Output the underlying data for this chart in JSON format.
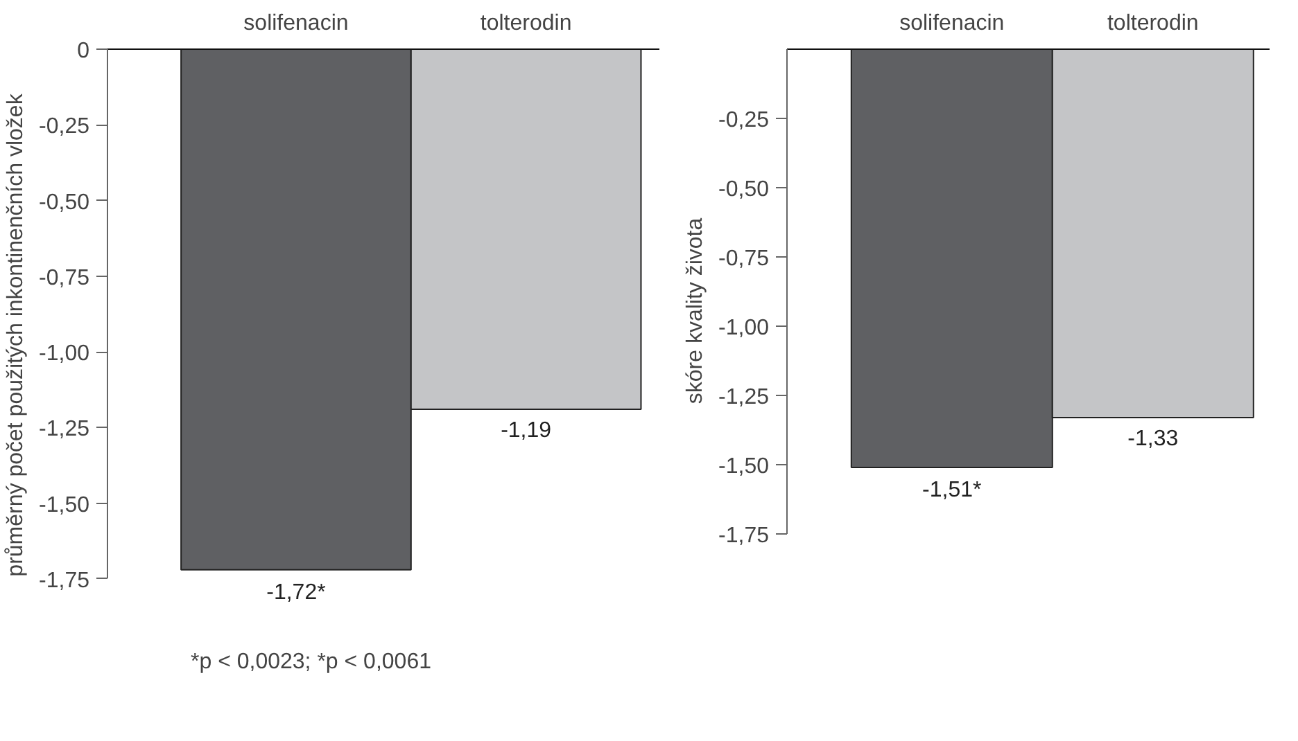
{
  "chart_data": [
    {
      "type": "bar",
      "ylabel": "průměrný počet použitých inkontinenčních vložek",
      "categories": [
        "solifenacin",
        "tolterodin"
      ],
      "values": [
        -1.72,
        -1.19
      ],
      "colors": [
        "#5f6063",
        "#c4c5c7"
      ],
      "value_labels": [
        "-1,72*",
        "-1,19"
      ],
      "ylim": [
        -1.75,
        0
      ],
      "yticks": [
        0,
        {
          "value": -0.25,
          "label": "-0,25"
        },
        {
          "value": -0.5,
          "label": "-0,50"
        },
        {
          "value": -0.75,
          "label": "-0,75"
        },
        {
          "value": -1.0,
          "label": "-1,00"
        },
        {
          "value": -1.25,
          "label": "-1,25"
        },
        {
          "value": -1.5,
          "label": "-1,50"
        },
        {
          "value": -1.75,
          "label": "-1,75"
        }
      ],
      "grid": false,
      "annotations": [
        "*p < 0,0023;  *p < 0,0061"
      ]
    },
    {
      "type": "bar",
      "ylabel": "skóre kvality života",
      "categories": [
        "solifenacin",
        "tolterodin"
      ],
      "values": [
        -1.51,
        -1.33
      ],
      "colors": [
        "#5f6063",
        "#c4c5c7"
      ],
      "value_labels": [
        "-1,51*",
        "-1,33"
      ],
      "ylim": [
        -1.75,
        0
      ],
      "yticks": [
        {
          "value": -0.25,
          "label": "-0,25"
        },
        {
          "value": -0.5,
          "label": "-0,50"
        },
        {
          "value": -0.75,
          "label": "-0,75"
        },
        {
          "value": -1.0,
          "label": "-1,00"
        },
        {
          "value": -1.25,
          "label": "-1,25"
        },
        {
          "value": -1.5,
          "label": "-1,50"
        },
        {
          "value": -1.75,
          "label": "-1,75"
        }
      ],
      "grid": false
    }
  ]
}
